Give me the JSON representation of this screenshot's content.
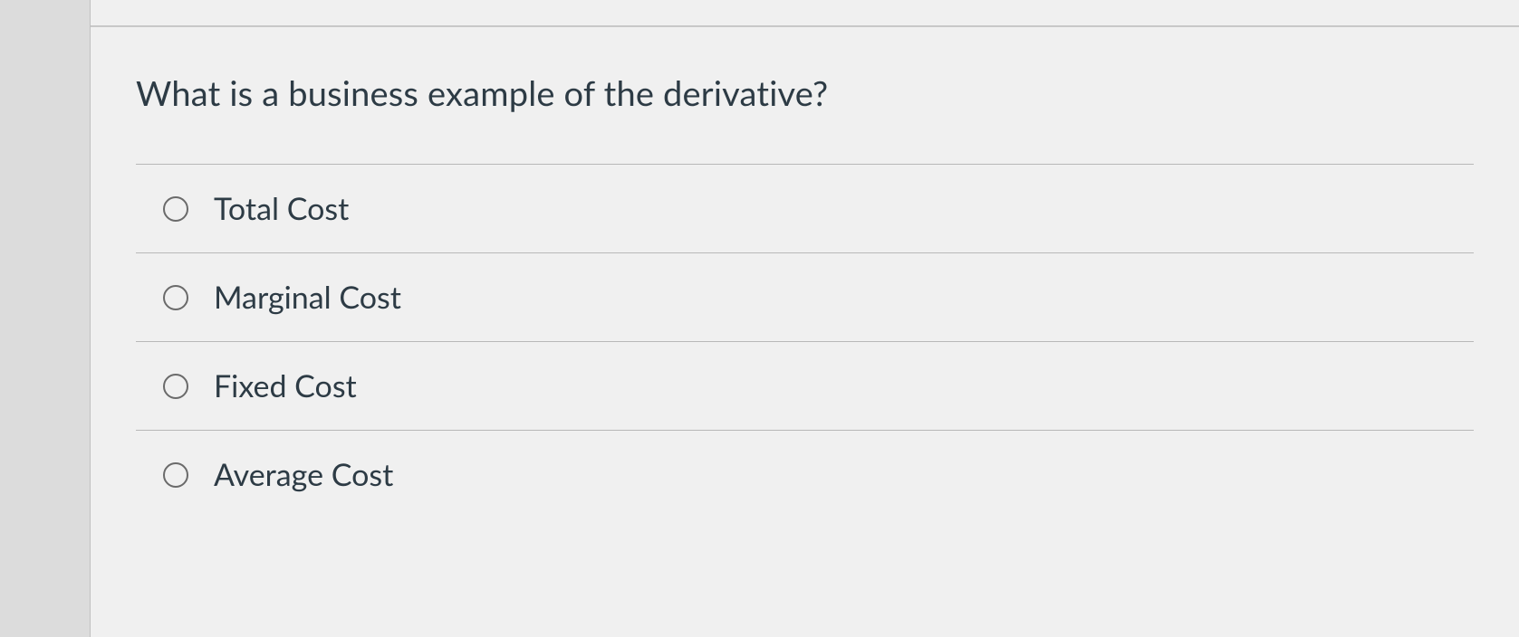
{
  "question": {
    "prompt": "What is a business example of the derivative?",
    "options": [
      {
        "label": "Total Cost",
        "selected": false
      },
      {
        "label": "Marginal Cost",
        "selected": false
      },
      {
        "label": "Fixed Cost",
        "selected": false
      },
      {
        "label": "Average Cost",
        "selected": false
      }
    ]
  },
  "style": {
    "background_color": "#f0f0f0",
    "gutter_color": "#dcdcdc",
    "border_color": "#b8b8b8",
    "text_color": "#2d3b45",
    "radio_border_color": "#6a6a6a",
    "question_fontsize": 38,
    "option_fontsize": 34
  }
}
